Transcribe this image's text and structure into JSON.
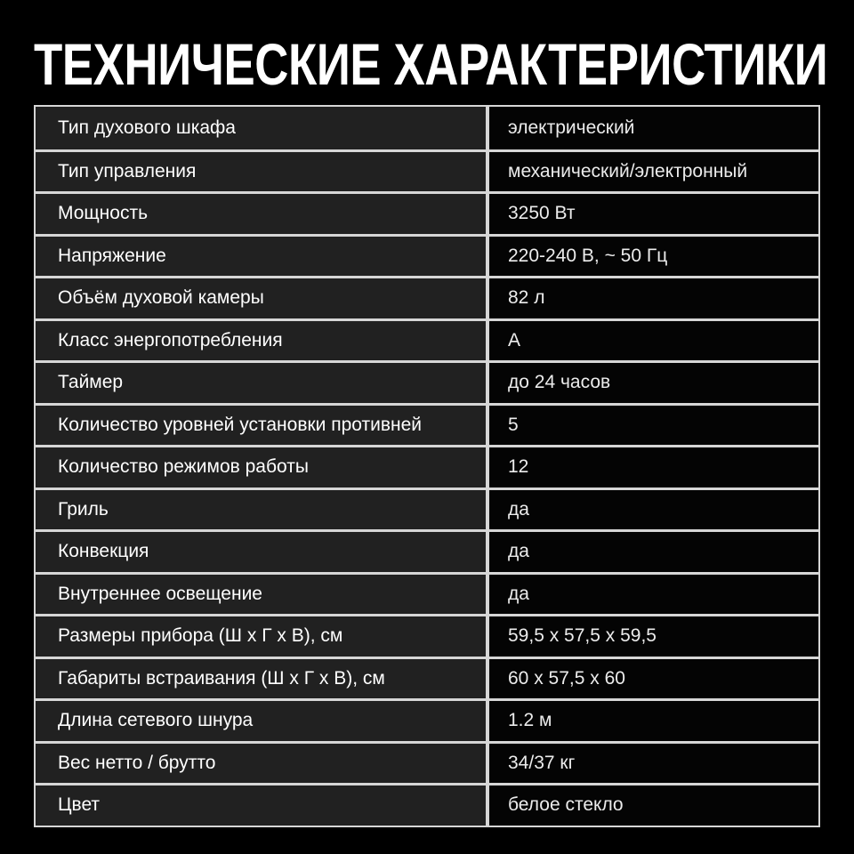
{
  "title": "ТЕХНИЧЕСКИЕ ХАРАКТЕРИСТИКИ",
  "colors": {
    "page_bg": "#000000",
    "title_text": "#ffffff",
    "label_cell_bg": "#212121",
    "value_cell_bg": "#040404",
    "border": "#d6d6d6",
    "label_text": "#ffffff",
    "value_text": "#ececec"
  },
  "table": {
    "rows": [
      {
        "label": "Тип духового шкафа",
        "value": "электрический"
      },
      {
        "label": "Тип управления",
        "value": "механический/электронный"
      },
      {
        "label": "Мощность",
        "value": "3250 Вт"
      },
      {
        "label": "Напряжение",
        "value": "220-240 В, ~ 50 Гц"
      },
      {
        "label": "Объём духовой камеры",
        "value": "82 л"
      },
      {
        "label": "Класс энергопотребления",
        "value": "А"
      },
      {
        "label": "Таймер",
        "value": "до 24 часов"
      },
      {
        "label": "Количество уровней установки противней",
        "value": "5"
      },
      {
        "label": "Количество режимов работы",
        "value": "12"
      },
      {
        "label": "Гриль",
        "value": "да"
      },
      {
        "label": "Конвекция",
        "value": "да"
      },
      {
        "label": "Внутреннее освещение",
        "value": "да"
      },
      {
        "label": "Размеры прибора (Ш х Г х В), см",
        "value": "59,5 х 57,5 х 59,5"
      },
      {
        "label": "Габариты встраивания (Ш х Г х В), см",
        "value": "60 х 57,5 х 60"
      },
      {
        "label": "Длина сетевого шнура",
        "value": "1.2 м"
      },
      {
        "label": "Вес нетто / брутто",
        "value": "34/37 кг"
      },
      {
        "label": "Цвет",
        "value": "белое стекло"
      }
    ]
  }
}
